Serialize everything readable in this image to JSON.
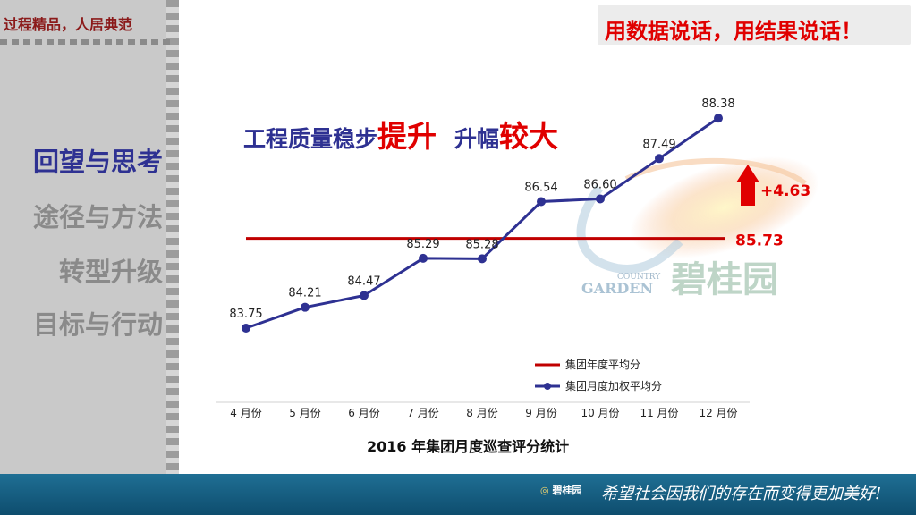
{
  "header": {
    "tagline": "过程精品，人居典范",
    "banner": "用数据说话，用结果说话！"
  },
  "sidebar": {
    "items": [
      {
        "label": "回望与思考",
        "active": true
      },
      {
        "label": "途径与方法",
        "active": false
      },
      {
        "label": "转型升级",
        "active": false
      },
      {
        "label": "目标与行动",
        "active": false
      }
    ]
  },
  "headline": {
    "part1": "工程质量稳步",
    "part2": "提升",
    "part3": "升幅",
    "part4": "较大"
  },
  "chart_data": {
    "type": "line",
    "title": "2016 年集团月度巡查评分统计",
    "categories": [
      "4 月份",
      "5 月份",
      "6 月份",
      "7 月份",
      "8 月份",
      "9 月份",
      "10 月份",
      "11 月份",
      "12 月份"
    ],
    "series": [
      {
        "name": "集团月度加权平均分",
        "values": [
          83.75,
          84.21,
          84.47,
          85.29,
          85.28,
          86.54,
          86.6,
          87.49,
          88.38
        ],
        "color": "#2e3192"
      },
      {
        "name": "集团年度平均分",
        "constant": 85.73,
        "color": "#c00000"
      }
    ],
    "average_label": "85.73",
    "increase_label": "+4.63",
    "legend_position": "bottom-right",
    "grid": false
  },
  "watermark": {
    "en1": "COUNTRY",
    "en2": "GARDEN",
    "cn": "碧桂园"
  },
  "footer": {
    "logo_text": "碧桂园",
    "slogan": "希望社会因我们的存在而变得更加美好!"
  }
}
